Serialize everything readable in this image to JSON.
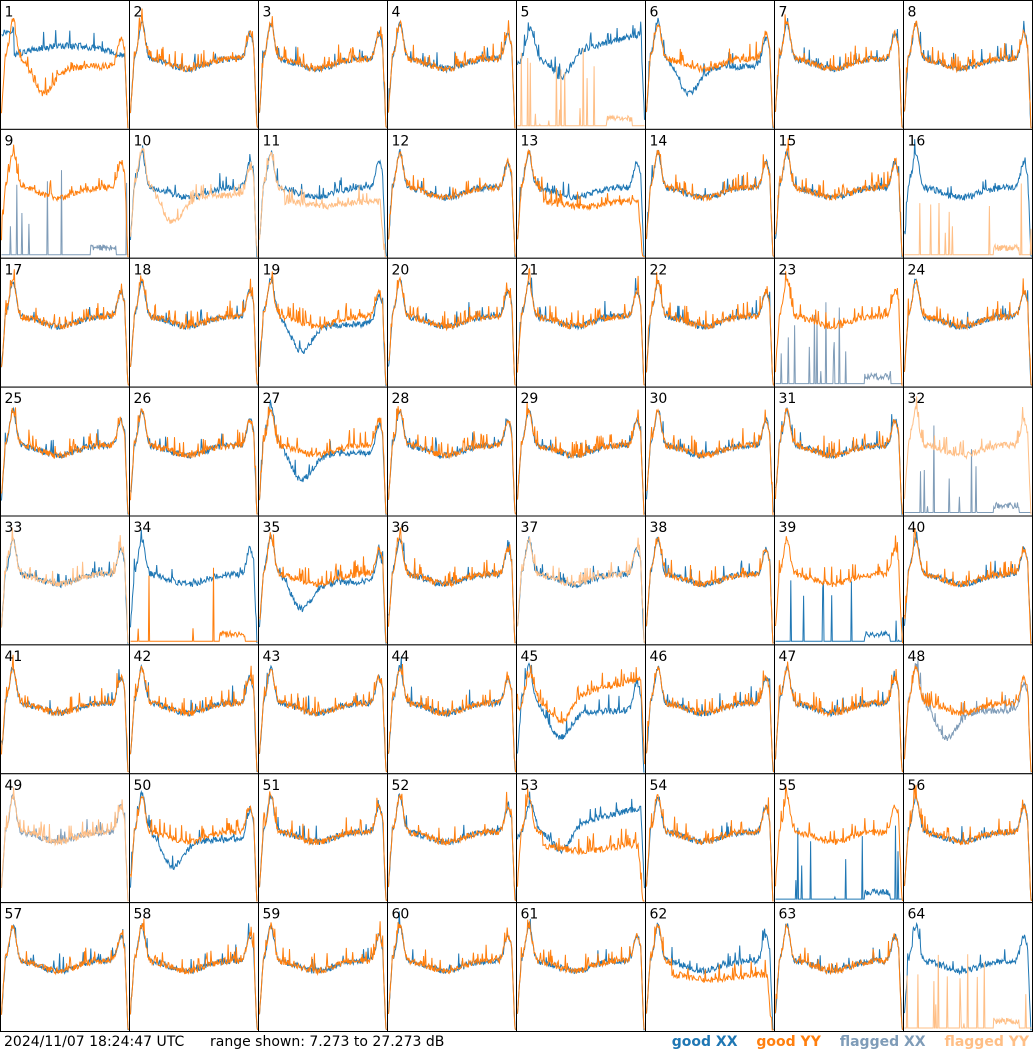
{
  "chart_data": {
    "type": "line",
    "layout": {
      "rows": 8,
      "cols": 8
    },
    "panels": [
      {
        "label": "1",
        "xx": "good",
        "yy": "good",
        "xx_shape": "hump",
        "yy_shape": "dip"
      },
      {
        "label": "2",
        "xx": "good",
        "yy": "good",
        "xx_shape": "normal",
        "yy_shape": "normal"
      },
      {
        "label": "3",
        "xx": "good",
        "yy": "good",
        "xx_shape": "normal",
        "yy_shape": "normal"
      },
      {
        "label": "4",
        "xx": "good",
        "yy": "good",
        "xx_shape": "normal",
        "yy_shape": "normal"
      },
      {
        "label": "5",
        "xx": "good",
        "yy": "flagged",
        "xx_shape": "bump",
        "yy_shape": "spikes"
      },
      {
        "label": "6",
        "xx": "good",
        "yy": "good",
        "xx_shape": "dip",
        "yy_shape": "normal"
      },
      {
        "label": "7",
        "xx": "good",
        "yy": "good",
        "xx_shape": "normal",
        "yy_shape": "normal"
      },
      {
        "label": "8",
        "xx": "good",
        "yy": "good",
        "xx_shape": "normal",
        "yy_shape": "normal"
      },
      {
        "label": "9",
        "xx": "flagged",
        "yy": "good",
        "xx_shape": "spikes",
        "yy_shape": "normal"
      },
      {
        "label": "10",
        "xx": "good",
        "yy": "flagged",
        "xx_shape": "normal",
        "yy_shape": "dip"
      },
      {
        "label": "11",
        "xx": "good",
        "yy": "flagged",
        "xx_shape": "normal",
        "yy_shape": "lowflat"
      },
      {
        "label": "12",
        "xx": "good",
        "yy": "good",
        "xx_shape": "normal",
        "yy_shape": "normal"
      },
      {
        "label": "13",
        "xx": "good",
        "yy": "good",
        "xx_shape": "normal",
        "yy_shape": "lowflat"
      },
      {
        "label": "14",
        "xx": "good",
        "yy": "good",
        "xx_shape": "normal",
        "yy_shape": "normal"
      },
      {
        "label": "15",
        "xx": "good",
        "yy": "good",
        "xx_shape": "normal",
        "yy_shape": "normal"
      },
      {
        "label": "16",
        "xx": "good",
        "yy": "flagged",
        "xx_shape": "normal",
        "yy_shape": "spikes"
      },
      {
        "label": "17",
        "xx": "good",
        "yy": "good",
        "xx_shape": "normal",
        "yy_shape": "normal"
      },
      {
        "label": "18",
        "xx": "good",
        "yy": "good",
        "xx_shape": "normal",
        "yy_shape": "normal"
      },
      {
        "label": "19",
        "xx": "good",
        "yy": "good",
        "xx_shape": "dip",
        "yy_shape": "normal"
      },
      {
        "label": "20",
        "xx": "good",
        "yy": "good",
        "xx_shape": "normal",
        "yy_shape": "normal"
      },
      {
        "label": "21",
        "xx": "good",
        "yy": "good",
        "xx_shape": "normal",
        "yy_shape": "normal"
      },
      {
        "label": "22",
        "xx": "good",
        "yy": "good",
        "xx_shape": "normal",
        "yy_shape": "normal"
      },
      {
        "label": "23",
        "xx": "flagged",
        "yy": "good",
        "xx_shape": "spikes",
        "yy_shape": "normal"
      },
      {
        "label": "24",
        "xx": "good",
        "yy": "good",
        "xx_shape": "normal",
        "yy_shape": "normal"
      },
      {
        "label": "25",
        "xx": "good",
        "yy": "good",
        "xx_shape": "normal",
        "yy_shape": "normal"
      },
      {
        "label": "26",
        "xx": "good",
        "yy": "good",
        "xx_shape": "normal",
        "yy_shape": "normal"
      },
      {
        "label": "27",
        "xx": "good",
        "yy": "good",
        "xx_shape": "dip",
        "yy_shape": "normal"
      },
      {
        "label": "28",
        "xx": "good",
        "yy": "good",
        "xx_shape": "normal",
        "yy_shape": "normal"
      },
      {
        "label": "29",
        "xx": "good",
        "yy": "good",
        "xx_shape": "normal",
        "yy_shape": "normal"
      },
      {
        "label": "30",
        "xx": "good",
        "yy": "good",
        "xx_shape": "normal",
        "yy_shape": "normal"
      },
      {
        "label": "31",
        "xx": "good",
        "yy": "good",
        "xx_shape": "normal",
        "yy_shape": "normal"
      },
      {
        "label": "32",
        "xx": "flagged",
        "yy": "flagged",
        "xx_shape": "spikes",
        "yy_shape": "normal"
      },
      {
        "label": "33",
        "xx": "good",
        "yy": "flagged",
        "xx_shape": "normal",
        "yy_shape": "normal"
      },
      {
        "label": "34",
        "xx": "good",
        "yy": "good",
        "xx_shape": "normal",
        "yy_shape": "spikes"
      },
      {
        "label": "35",
        "xx": "good",
        "yy": "good",
        "xx_shape": "dip",
        "yy_shape": "normal"
      },
      {
        "label": "36",
        "xx": "good",
        "yy": "good",
        "xx_shape": "normal",
        "yy_shape": "normal"
      },
      {
        "label": "37",
        "xx": "good",
        "yy": "flagged",
        "xx_shape": "normal",
        "yy_shape": "normal"
      },
      {
        "label": "38",
        "xx": "good",
        "yy": "good",
        "xx_shape": "normal",
        "yy_shape": "normal"
      },
      {
        "label": "39",
        "xx": "good",
        "yy": "good",
        "xx_shape": "spikes",
        "yy_shape": "normal"
      },
      {
        "label": "40",
        "xx": "good",
        "yy": "good",
        "xx_shape": "normal",
        "yy_shape": "normal"
      },
      {
        "label": "41",
        "xx": "good",
        "yy": "good",
        "xx_shape": "normal",
        "yy_shape": "normal"
      },
      {
        "label": "42",
        "xx": "good",
        "yy": "good",
        "xx_shape": "normal",
        "yy_shape": "normal"
      },
      {
        "label": "43",
        "xx": "good",
        "yy": "good",
        "xx_shape": "normal",
        "yy_shape": "normal"
      },
      {
        "label": "44",
        "xx": "good",
        "yy": "good",
        "xx_shape": "normal",
        "yy_shape": "normal"
      },
      {
        "label": "45",
        "xx": "good",
        "yy": "good",
        "xx_shape": "dip",
        "yy_shape": "bump"
      },
      {
        "label": "46",
        "xx": "good",
        "yy": "good",
        "xx_shape": "normal",
        "yy_shape": "normal"
      },
      {
        "label": "47",
        "xx": "good",
        "yy": "good",
        "xx_shape": "normal",
        "yy_shape": "normal"
      },
      {
        "label": "48",
        "xx": "flagged",
        "yy": "good",
        "xx_shape": "dip",
        "yy_shape": "normal"
      },
      {
        "label": "49",
        "xx": "flagged",
        "yy": "flagged",
        "xx_shape": "normal",
        "yy_shape": "normal"
      },
      {
        "label": "50",
        "xx": "good",
        "yy": "good",
        "xx_shape": "dip",
        "yy_shape": "normal"
      },
      {
        "label": "51",
        "xx": "good",
        "yy": "good",
        "xx_shape": "normal",
        "yy_shape": "normal"
      },
      {
        "label": "52",
        "xx": "good",
        "yy": "good",
        "xx_shape": "normal",
        "yy_shape": "normal"
      },
      {
        "label": "53",
        "xx": "good",
        "yy": "good",
        "xx_shape": "bump",
        "yy_shape": "lowflat"
      },
      {
        "label": "54",
        "xx": "good",
        "yy": "good",
        "xx_shape": "normal",
        "yy_shape": "normal"
      },
      {
        "label": "55",
        "xx": "good",
        "yy": "good",
        "xx_shape": "spikes",
        "yy_shape": "normal"
      },
      {
        "label": "56",
        "xx": "good",
        "yy": "good",
        "xx_shape": "normal",
        "yy_shape": "normal"
      },
      {
        "label": "57",
        "xx": "good",
        "yy": "good",
        "xx_shape": "normal",
        "yy_shape": "normal"
      },
      {
        "label": "58",
        "xx": "good",
        "yy": "good",
        "xx_shape": "normal",
        "yy_shape": "normal"
      },
      {
        "label": "59",
        "xx": "good",
        "yy": "good",
        "xx_shape": "normal",
        "yy_shape": "normal"
      },
      {
        "label": "60",
        "xx": "good",
        "yy": "good",
        "xx_shape": "normal",
        "yy_shape": "normal"
      },
      {
        "label": "61",
        "xx": "good",
        "yy": "good",
        "xx_shape": "normal",
        "yy_shape": "normal"
      },
      {
        "label": "62",
        "xx": "good",
        "yy": "good",
        "xx_shape": "normal",
        "yy_shape": "lowflat"
      },
      {
        "label": "63",
        "xx": "good",
        "yy": "good",
        "xx_shape": "normal",
        "yy_shape": "normal"
      },
      {
        "label": "64",
        "xx": "good",
        "yy": "flagged",
        "xx_shape": "normal",
        "yy_shape": "spikes"
      }
    ],
    "colors": {
      "good_xx": "#1f77b4",
      "good_yy": "#ff7f0e",
      "flagged_xx": "#7f9cb8",
      "flagged_yy": "#ffbf86"
    },
    "grid": false
  },
  "footer": {
    "timestamp": "2024/11/07 18:24:47 UTC",
    "range": "range shown: 7.273 to 27.273 dB"
  },
  "legend": {
    "good_xx": "good XX",
    "good_yy": "good YY",
    "flagged_xx": "flagged XX",
    "flagged_yy": "flagged YY"
  }
}
